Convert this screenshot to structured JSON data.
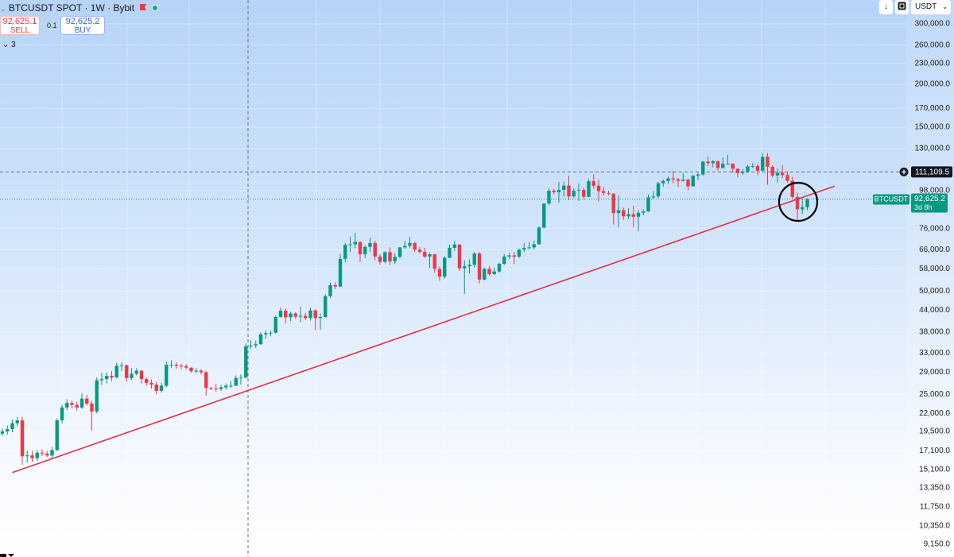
{
  "header": {
    "symbol": "BTCUSDT SPOT · 1W · Bybit",
    "sell_price": "92,625.1",
    "sell_label": "SELL",
    "spread": "0.1",
    "buy_price": "92,625.2",
    "buy_label": "BUY",
    "indicators_count": "3",
    "currency": "USDT"
  },
  "chart_data": {
    "type": "candlestick",
    "scale": "log",
    "ylim": [
      8400,
      352000
    ],
    "yticks": [
      {
        "value": 300000,
        "label": "300,000.0"
      },
      {
        "value": 260000,
        "label": "260,000.0"
      },
      {
        "value": 230000,
        "label": "230,000.0"
      },
      {
        "value": 200000,
        "label": "200,000.0"
      },
      {
        "value": 170000,
        "label": "170,000.0"
      },
      {
        "value": 150000,
        "label": "150,000.0"
      },
      {
        "value": 130000,
        "label": "130,000.0"
      },
      {
        "value": 98000,
        "label": "98,000.0"
      },
      {
        "value": 76000,
        "label": "76,000.0"
      },
      {
        "value": 66000,
        "label": "66,000.0"
      },
      {
        "value": 58000,
        "label": "58,000.0"
      },
      {
        "value": 50000,
        "label": "50,000.0"
      },
      {
        "value": 44000,
        "label": "44,000.0"
      },
      {
        "value": 38000,
        "label": "38,000.0"
      },
      {
        "value": 33000,
        "label": "33,000.0"
      },
      {
        "value": 29000,
        "label": "29,000.0"
      },
      {
        "value": 25000,
        "label": "25,000.0"
      },
      {
        "value": 22000,
        "label": "22,000.0"
      },
      {
        "value": 19500,
        "label": "19,500.0"
      },
      {
        "value": 17100,
        "label": "17,100.0"
      },
      {
        "value": 15100,
        "label": "15,100.0"
      },
      {
        "value": 13350,
        "label": "13,350.0"
      },
      {
        "value": 11750,
        "label": "11,750.0"
      },
      {
        "value": 10350,
        "label": "10,350.0"
      },
      {
        "value": 9150,
        "label": "9,150.0"
      }
    ],
    "up_color": "#089981",
    "down_color": "#f23645",
    "series": {
      "open": [
        19200,
        19500,
        19800,
        20600,
        21000,
        16500,
        16600,
        16300,
        16900,
        16800,
        16600,
        17200,
        21000,
        22900,
        23600,
        23300,
        22900,
        24300,
        23500,
        22300,
        27500,
        27700,
        28300,
        28000,
        30300,
        30400,
        27900,
        28700,
        29300,
        27700,
        27000,
        26700,
        25600,
        26500,
        30500,
        30500,
        30300,
        30200,
        29900,
        29200,
        29300,
        29000,
        26100,
        26000,
        25900,
        26200,
        26500,
        26500,
        27900,
        28000,
        34500,
        34700,
        35000,
        37400,
        37700,
        37800,
        42000,
        43800,
        41900,
        43000,
        42100,
        42300,
        41700,
        43900,
        41700,
        42000,
        48300,
        52000,
        51500,
        62000,
        68200,
        68400,
        69500,
        64000,
        67200,
        69000,
        63000,
        60800,
        64900,
        61000,
        62900,
        67000,
        67700,
        69000,
        66000,
        65000,
        63000,
        64000,
        58000,
        55000,
        62500,
        66800,
        68300,
        58200,
        59000,
        59600,
        64300,
        54000,
        58000,
        56000,
        57000,
        60000,
        63000,
        63500,
        63000,
        66000,
        66700,
        67000,
        68400,
        76500,
        89900,
        98000,
        97000,
        98500,
        101400,
        94300,
        98000,
        98500,
        94000,
        104400,
        101300,
        97700,
        96500,
        96100,
        84300,
        86000,
        82500,
        83700,
        82300,
        84500,
        85200,
        93700,
        94300,
        103000,
        104600,
        106400,
        105700,
        104600,
        105500,
        100900,
        108300,
        109200,
        119100,
        117900,
        119400,
        114000,
        117400,
        117500,
        113500,
        110200,
        111300,
        115300,
        115600,
        112000,
        123000,
        115000,
        108500,
        110500,
        108800,
        104700,
        94000,
        86500,
        87700
      ],
      "high": [
        19900,
        20300,
        21100,
        21500,
        21500,
        17100,
        17100,
        17200,
        17300,
        17100,
        17600,
        21300,
        23300,
        24200,
        24000,
        23800,
        25200,
        24900,
        23900,
        28000,
        28900,
        29000,
        29200,
        30900,
        31000,
        30500,
        29800,
        29800,
        29400,
        28000,
        27600,
        27200,
        27000,
        31200,
        31400,
        31000,
        30700,
        30600,
        30000,
        29800,
        29600,
        29300,
        26300,
        26800,
        26600,
        26900,
        27300,
        28400,
        28600,
        35200,
        35900,
        35900,
        37900,
        38400,
        38400,
        42400,
        44700,
        44400,
        43500,
        43400,
        45000,
        43200,
        44700,
        44200,
        43000,
        48900,
        52900,
        53000,
        64000,
        69000,
        72000,
        73800,
        69700,
        68000,
        71500,
        70000,
        64000,
        65300,
        67000,
        64400,
        67100,
        70000,
        71900,
        69500,
        67200,
        66800,
        64500,
        64100,
        59000,
        63000,
        68300,
        70000,
        68400,
        61500,
        61800,
        65000,
        64900,
        58500,
        59100,
        58600,
        60400,
        64000,
        64500,
        65000,
        66500,
        69000,
        69500,
        70200,
        77300,
        90000,
        99500,
        99200,
        103900,
        104000,
        108300,
        99500,
        102700,
        99900,
        106000,
        109400,
        105500,
        100200,
        98000,
        96200,
        94900,
        87400,
        87000,
        88700,
        86000,
        86400,
        95500,
        97900,
        104000,
        105700,
        107800,
        111900,
        106800,
        110400,
        106100,
        108900,
        110500,
        119500,
        123200,
        120200,
        119800,
        122300,
        124500,
        117600,
        113700,
        113300,
        116400,
        117900,
        117500,
        126200,
        126000,
        116000,
        113700,
        116400,
        111200,
        107500,
        96600,
        93100,
        93000
      ],
      "low": [
        18900,
        19100,
        19400,
        20200,
        15600,
        15800,
        15900,
        16000,
        16500,
        16400,
        16300,
        17100,
        20600,
        22500,
        22800,
        22400,
        22700,
        23200,
        19600,
        22000,
        26600,
        26900,
        27300,
        27800,
        29200,
        27200,
        27500,
        28400,
        26900,
        26500,
        26000,
        25000,
        25300,
        26200,
        29900,
        29700,
        29600,
        29500,
        28900,
        28800,
        28600,
        24800,
        25700,
        25400,
        25600,
        25800,
        26100,
        26400,
        26700,
        27800,
        33900,
        34100,
        34800,
        36300,
        36900,
        37600,
        41800,
        40300,
        40900,
        41500,
        40600,
        41200,
        41000,
        38500,
        38600,
        41800,
        47700,
        50600,
        51300,
        60700,
        65000,
        66600,
        60800,
        62300,
        65000,
        61500,
        59600,
        60200,
        59600,
        60000,
        62200,
        66300,
        66600,
        65000,
        64300,
        62400,
        58400,
        56500,
        53500,
        54300,
        62300,
        65300,
        57200,
        49000,
        56200,
        58500,
        52600,
        53700,
        55500,
        55700,
        56600,
        59500,
        62100,
        60000,
        62400,
        65100,
        66000,
        66000,
        68200,
        76200,
        89200,
        95500,
        90500,
        94200,
        92100,
        93500,
        91500,
        92500,
        93800,
        99300,
        91200,
        95000,
        94900,
        78100,
        76600,
        80600,
        81000,
        76600,
        74600,
        83100,
        85000,
        92800,
        93400,
        100700,
        102500,
        103000,
        100400,
        104200,
        98200,
        100800,
        105300,
        108300,
        115700,
        114700,
        112000,
        113800,
        116800,
        110400,
        107300,
        108800,
        110600,
        114000,
        108700,
        111600,
        102000,
        107000,
        103500,
        106700,
        103500,
        93000,
        80600,
        83800,
        86000
      ],
      "close": [
        19500,
        19800,
        20600,
        21000,
        16500,
        16600,
        16300,
        16900,
        16800,
        16600,
        17200,
        21000,
        22900,
        23600,
        23300,
        22900,
        24300,
        23500,
        22300,
        27500,
        27700,
        28300,
        28000,
        30300,
        30400,
        27900,
        28700,
        29300,
        27700,
        27000,
        26700,
        25600,
        26500,
        30500,
        30500,
        30300,
        30200,
        29900,
        29200,
        29300,
        29000,
        26100,
        26000,
        25900,
        26200,
        26500,
        26500,
        27900,
        28000,
        34500,
        34700,
        35000,
        37400,
        37700,
        37800,
        42000,
        43800,
        41900,
        43000,
        42100,
        42300,
        41700,
        43900,
        41700,
        42000,
        48300,
        52000,
        51500,
        62000,
        68200,
        68400,
        69500,
        64000,
        67200,
        69000,
        63000,
        60800,
        64900,
        61000,
        62900,
        67000,
        67700,
        69000,
        66000,
        65000,
        63000,
        64000,
        58000,
        55000,
        62500,
        66800,
        68300,
        58200,
        59000,
        59600,
        64300,
        54000,
        58000,
        56000,
        57000,
        60000,
        63000,
        63500,
        63000,
        66000,
        66700,
        67000,
        68400,
        76500,
        89900,
        98000,
        97000,
        98500,
        101400,
        94300,
        98000,
        98500,
        94000,
        104400,
        101300,
        97700,
        96500,
        96100,
        84300,
        86000,
        82500,
        83700,
        82300,
        84500,
        85200,
        93700,
        94300,
        103000,
        104600,
        106400,
        105700,
        104600,
        105500,
        100900,
        108300,
        109200,
        119100,
        117900,
        119400,
        114000,
        117400,
        117500,
        113500,
        110200,
        111300,
        115300,
        115600,
        112000,
        123000,
        115000,
        108500,
        110500,
        108800,
        104700,
        94000,
        86500,
        87700,
        92625.2
      ]
    },
    "crosshair_price": {
      "value": 111109.5,
      "label": "111,109.5"
    },
    "last_price": {
      "value": 92625.2,
      "label": "92,625.2",
      "name": "BTCUSDT",
      "countdown": "3d 8h"
    },
    "trendline": {
      "color": "#e0334a",
      "from": {
        "index": 2,
        "value": 14800
      },
      "to": {
        "index": 167.5,
        "value": 101000
      }
    }
  }
}
